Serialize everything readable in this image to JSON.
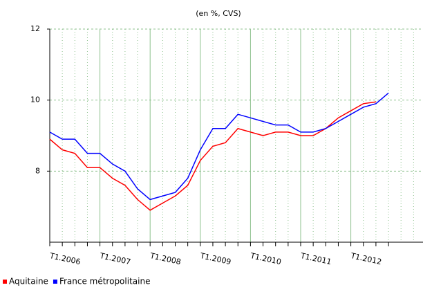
{
  "chart_data": {
    "type": "line",
    "subtitle": "(en %, CVS)",
    "categories": [
      "T1.2006",
      null,
      null,
      null,
      "T1.2007",
      null,
      null,
      null,
      "T1.2008",
      null,
      null,
      null,
      "T1.2009",
      null,
      null,
      null,
      "T1.2010",
      null,
      null,
      null,
      "T1.2011",
      null,
      null,
      null,
      "T1.2012",
      null,
      null,
      null
    ],
    "series": [
      {
        "name": "Aquitaine",
        "color": "#ff0000",
        "values": [
          8.9,
          8.6,
          8.5,
          8.1,
          8.1,
          7.8,
          7.6,
          7.2,
          6.9,
          7.1,
          7.3,
          7.6,
          8.3,
          8.7,
          8.8,
          9.2,
          9.1,
          9.0,
          9.1,
          9.1,
          9.0,
          9.0,
          9.2,
          9.5,
          9.7,
          9.9,
          9.95,
          null
        ]
      },
      {
        "name": "France métropolitaine",
        "color": "#0000ff",
        "values": [
          9.1,
          8.9,
          8.9,
          8.5,
          8.5,
          8.2,
          8.0,
          7.5,
          7.2,
          7.3,
          7.4,
          7.8,
          8.6,
          9.2,
          9.2,
          9.6,
          9.5,
          9.4,
          9.3,
          9.3,
          9.1,
          9.1,
          9.2,
          9.4,
          9.6,
          9.8,
          9.9,
          10.2
        ]
      }
    ],
    "ylim": [
      6,
      12
    ],
    "yticks": [
      8,
      10,
      12
    ],
    "grid": true,
    "legend": "bottom-left"
  }
}
